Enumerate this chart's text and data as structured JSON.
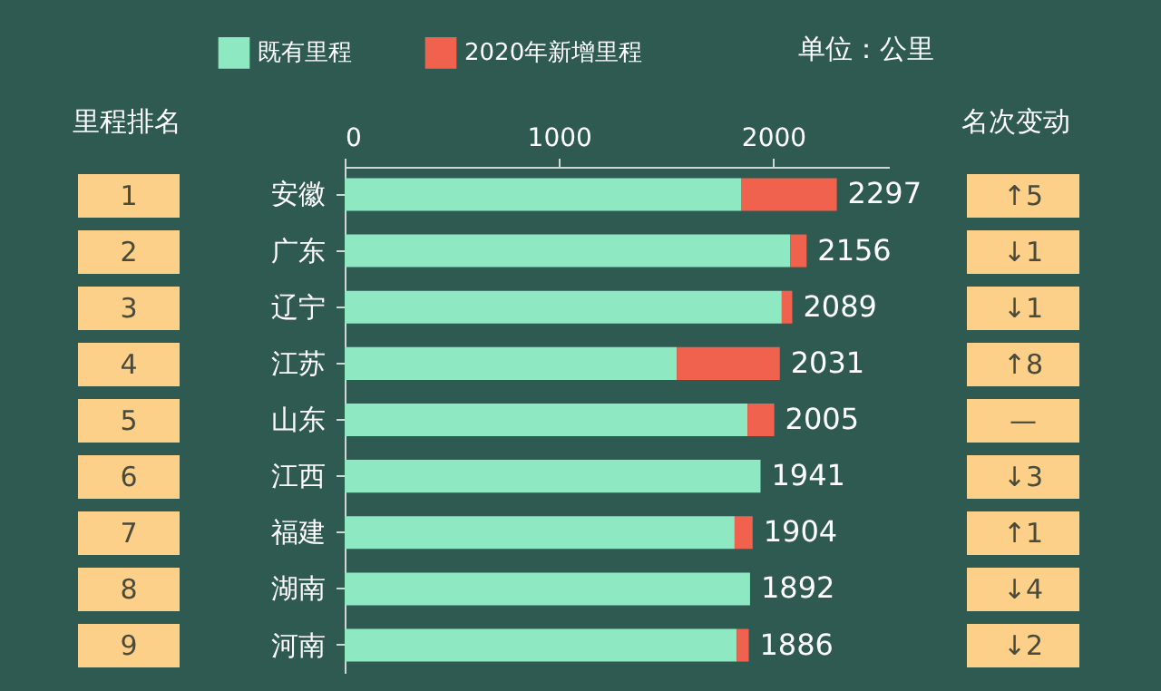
{
  "chart_data": {
    "type": "bar",
    "orientation": "horizontal",
    "stacked": true,
    "categories": [
      "安徽",
      "广东",
      "辽宁",
      "江苏",
      "山东",
      "江西",
      "福建",
      "湖南",
      "河南"
    ],
    "series": [
      {
        "name": "既有里程",
        "color": "#8ee8c2",
        "values": [
          1850,
          2080,
          2040,
          1550,
          1880,
          1941,
          1820,
          1892,
          1830
        ]
      },
      {
        "name": "2020年新增里程",
        "color": "#f0624d",
        "values": [
          447,
          76,
          49,
          481,
          125,
          0,
          84,
          0,
          56
        ]
      }
    ],
    "totals": [
      "2297",
      "2156",
      "2089",
      "2031",
      "2005",
      "1941",
      "1904",
      "1892",
      "1886"
    ],
    "xlim": [
      0,
      2540
    ],
    "xticks": [
      0,
      1000,
      2000
    ],
    "legend": "top",
    "annotations": [
      "单位：公里",
      "里程排名",
      "名次变动",
      "1",
      "2",
      "3",
      "4",
      "5",
      "6",
      "7",
      "8",
      "9",
      "↑5",
      "↓1",
      "↓1",
      "↑8",
      "—",
      "↓3",
      "↑1",
      "↓4",
      "↓2"
    ]
  }
}
